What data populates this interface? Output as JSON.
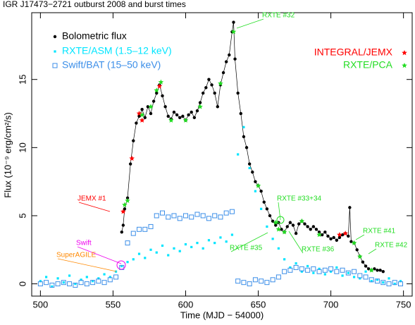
{
  "chart_data": {
    "type": "scatter",
    "title": "IGR J17473−2721 outburst 2008 and burst times",
    "x_label": "Time (MJD − 54000)",
    "y_label": "Flux (10⁻⁹ erg/cm²/s)",
    "xlim": [
      494,
      756
    ],
    "ylim": [
      -0.9,
      19.9
    ],
    "xticks": [
      500,
      550,
      600,
      650,
      700,
      750
    ],
    "yticks": [
      0,
      5,
      10,
      15
    ],
    "series": [
      {
        "name": "Bolometric flux",
        "color": "#000000",
        "marker": "dot",
        "connect": true,
        "x": [
          556,
          557,
          558,
          560,
          562,
          564,
          566,
          568,
          570,
          572,
          574,
          576,
          578,
          580,
          582,
          584,
          586,
          588,
          590,
          592,
          594,
          596,
          598,
          600,
          602,
          604,
          606,
          608,
          610,
          612,
          614,
          616,
          618,
          620,
          622,
          624,
          626,
          628,
          630,
          632,
          633,
          634,
          636,
          638,
          640,
          642,
          644,
          646,
          648,
          650,
          652,
          654,
          656,
          658,
          660,
          662,
          664,
          666,
          668,
          670,
          672,
          674,
          676,
          678,
          680,
          682,
          684,
          686,
          688,
          690,
          692,
          694,
          696,
          698,
          700,
          702,
          704,
          706,
          708,
          710,
          712,
          713,
          714,
          716,
          718,
          720,
          722,
          724,
          726,
          728,
          730,
          732,
          734,
          736
        ],
        "values": [
          3.8,
          4.3,
          5.5,
          6.3,
          8.8,
          10.5,
          11.8,
          12.3,
          12.8,
          12.2,
          13,
          12.5,
          13.4,
          14,
          14.6,
          13.8,
          13,
          12.3,
          12.1,
          12.6,
          12.4,
          12.2,
          12.3,
          12,
          12.4,
          12.6,
          12.2,
          12.7,
          13.3,
          14,
          14.4,
          15,
          14.6,
          14,
          13,
          14.6,
          15.5,
          16.3,
          16.8,
          18.5,
          19.2,
          16.5,
          14,
          12.5,
          10.8,
          10,
          8.8,
          8.2,
          7.5,
          7.2,
          6.8,
          6,
          5.5,
          5,
          4.6,
          4.3,
          4.5,
          4,
          3.8,
          4.2,
          4.5,
          4.3,
          3.7,
          4.4,
          4.6,
          4.4,
          4.2,
          4,
          4.2,
          4,
          3.8,
          3.6,
          3.8,
          3.5,
          3.3,
          3.4,
          3.2,
          3.4,
          3.6,
          3.7,
          3.5,
          5.6,
          3.1,
          3,
          2.5,
          2,
          1.6,
          1.3,
          1.1,
          1,
          1.1,
          1,
          1,
          0.9
        ]
      },
      {
        "name": "RXTE/ASM  (1.5–12 keV)",
        "color": "#00e5ff",
        "marker": "small-square",
        "x": [
          500,
          504,
          508,
          512,
          516,
          520,
          524,
          528,
          532,
          536,
          540,
          544,
          548,
          552,
          556,
          560,
          564,
          568,
          572,
          576,
          580,
          584,
          588,
          592,
          596,
          600,
          604,
          608,
          612,
          616,
          620,
          624,
          628,
          632,
          636,
          640,
          644,
          648,
          652,
          656,
          660,
          664,
          668,
          672,
          676,
          680,
          684,
          688,
          692,
          696,
          700,
          704,
          708,
          712,
          716,
          720,
          724,
          728,
          732,
          736,
          740,
          744,
          748
        ],
        "values": [
          0.2,
          0.5,
          -0.2,
          0.4,
          0.1,
          0.6,
          0,
          0.3,
          0.5,
          0.2,
          0.4,
          0.7,
          0.5,
          0.9,
          1.3,
          1.6,
          1.8,
          2.2,
          1.9,
          2.5,
          2.3,
          2.8,
          2.1,
          2.6,
          2.4,
          2.9,
          2.7,
          3,
          2.6,
          3.2,
          3,
          3.4,
          3.1,
          3.6,
          9.5,
          11.5,
          8.5,
          6.8,
          5.5,
          4.2,
          3.3,
          2.6,
          1.8,
          1.2,
          1.5,
          0.9,
          1.3,
          0.8,
          1.1,
          0.7,
          0.9,
          1.2,
          0.6,
          0.8,
          0.5,
          0.4,
          0.9,
          0.2,
          0.3,
          0.1,
          0.4,
          0,
          0.2
        ]
      },
      {
        "name": "Swift/BAT (15–50 keV)",
        "color": "#3b8ee8",
        "marker": "open-square",
        "x": [
          500,
          504,
          508,
          512,
          516,
          520,
          524,
          528,
          532,
          536,
          540,
          544,
          548,
          552,
          556,
          560,
          564,
          568,
          572,
          576,
          580,
          584,
          588,
          592,
          596,
          600,
          604,
          608,
          612,
          616,
          620,
          624,
          628,
          632,
          636,
          640,
          644,
          648,
          652,
          656,
          660,
          664,
          668,
          672,
          676,
          680,
          684,
          688,
          692,
          696,
          700,
          704,
          708,
          712,
          716,
          720,
          724,
          728,
          732,
          736,
          740,
          744,
          748
        ],
        "values": [
          0,
          0.1,
          -0.1,
          0,
          0.1,
          0,
          -0.1,
          0.1,
          0,
          0.1,
          0.2,
          0.1,
          0.3,
          0.5,
          1.2,
          3,
          3.7,
          4,
          4,
          4.2,
          5,
          5.2,
          4.9,
          5,
          4.8,
          5,
          4.9,
          5.1,
          5,
          4.8,
          5,
          4.9,
          5.2,
          5.3,
          0.2,
          0.1,
          0,
          0.3,
          0.2,
          0.1,
          0.3,
          0.5,
          0.9,
          1,
          1.2,
          1.1,
          1,
          1.1,
          0.9,
          1,
          1.1,
          0.9,
          1,
          0.8,
          0.9,
          0.6,
          0.5,
          0.3,
          0.2,
          0.1,
          0,
          0.1,
          0
        ]
      },
      {
        "name": "INTEGRAL/JEMX",
        "color": "#ff0000",
        "marker": "star",
        "x": [
          557,
          563,
          568,
          570,
          582,
          706,
          710
        ],
        "values": [
          5.3,
          9.2,
          12.5,
          12,
          14.5,
          3.6,
          3.7
        ]
      },
      {
        "name": "RXTE/PCA",
        "color": "#22dd22",
        "marker": "star",
        "x": [
          558,
          560,
          570,
          576,
          580,
          583,
          590,
          600,
          610,
          624,
          633,
          650,
          662,
          664,
          668,
          680,
          692,
          716,
          720,
          728
        ],
        "values": [
          5.8,
          6.1,
          12.4,
          13,
          14.2,
          14.8,
          12,
          12,
          13,
          14.7,
          18.5,
          7.2,
          4.5,
          4,
          3.8,
          4.6,
          3.6,
          3,
          2,
          1
        ]
      }
    ],
    "annotations": [
      {
        "text": "RXTE #32",
        "color": "#22dd22"
      },
      {
        "text": "JEMX #1",
        "color": "#ff0000"
      },
      {
        "text": "Swift",
        "color": "#ee00ee"
      },
      {
        "text": "SuperAGILE",
        "color": "#ff8800"
      },
      {
        "text": "RXTE #33+34",
        "color": "#22dd22"
      },
      {
        "text": "RXTE #35",
        "color": "#22dd22"
      },
      {
        "text": "RXTE #36",
        "color": "#22dd22"
      },
      {
        "text": "RXTE #41",
        "color": "#22dd22"
      },
      {
        "text": "RXTE #42",
        "color": "#22dd22"
      }
    ]
  }
}
